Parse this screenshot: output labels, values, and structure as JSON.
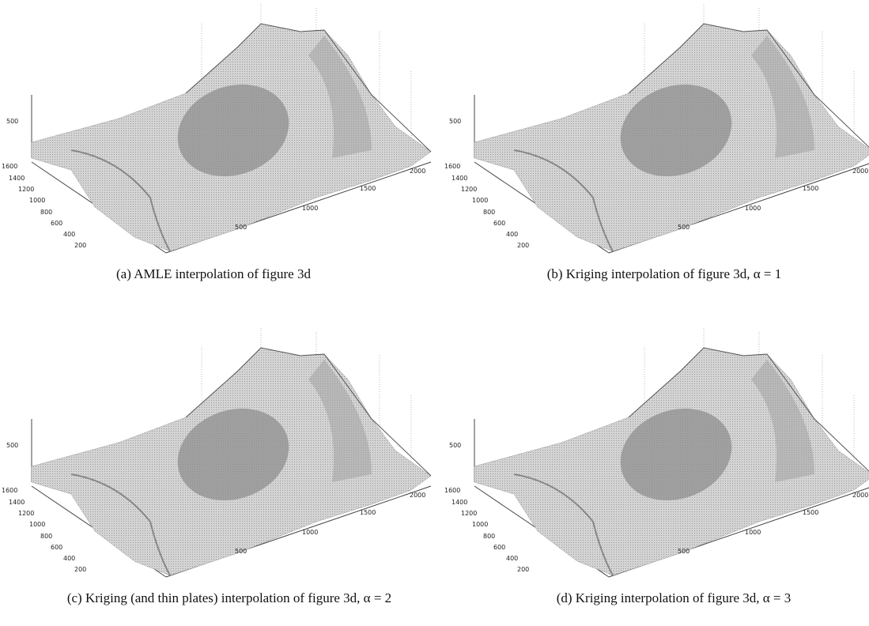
{
  "panels": [
    {
      "caption": "(a) AMLE interpolation of figure 3d",
      "z_ticks": [
        "500"
      ],
      "y_ticks": [
        "1600",
        "1400",
        "1200",
        "1000",
        "800",
        "600",
        "400",
        "200"
      ],
      "x_ticks": [
        "500",
        "1000",
        "1500",
        "2000"
      ]
    },
    {
      "caption": "(b) Kriging interpolation of figure 3d, α = 1",
      "z_ticks": [
        "500"
      ],
      "y_ticks": [
        "1600",
        "1400",
        "1200",
        "1000",
        "800",
        "600",
        "400",
        "200"
      ],
      "x_ticks": [
        "500",
        "1000",
        "1500",
        "2000"
      ]
    },
    {
      "caption": "(c) Kriging (and thin plates) interpolation of figure 3d, α = 2",
      "z_ticks": [
        "500"
      ],
      "y_ticks": [
        "1600",
        "1400",
        "1200",
        "1000",
        "800",
        "600",
        "400",
        "200"
      ],
      "x_ticks": [
        "500",
        "1000",
        "1500",
        "2000"
      ]
    },
    {
      "caption": "(d) Kriging interpolation of figure 3d, α = 3",
      "z_ticks": [
        "500"
      ],
      "y_ticks": [
        "1600",
        "1400",
        "1200",
        "1000",
        "800",
        "600",
        "400",
        "200"
      ],
      "x_ticks": [
        "500",
        "1000",
        "1500",
        "2000"
      ]
    }
  ]
}
